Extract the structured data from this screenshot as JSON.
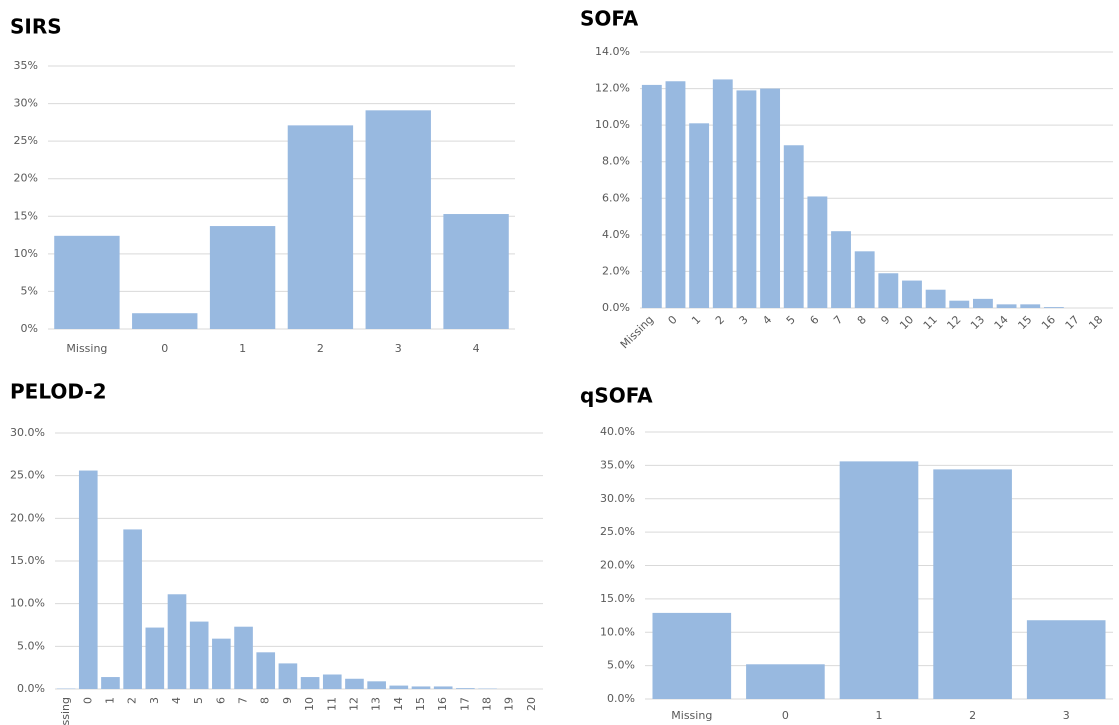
{
  "chart_data": [
    {
      "type": "bar",
      "title": "SIRS",
      "color": "#98b9e0",
      "grid": true,
      "categories": [
        "Missing",
        "0",
        "1",
        "2",
        "3",
        "4"
      ],
      "values": [
        12.4,
        2.1,
        13.7,
        27.1,
        29.1,
        15.3
      ],
      "ylim": [
        0,
        35
      ],
      "yticks": [
        {
          "value": 0,
          "label": "0%"
        },
        {
          "value": 5,
          "label": "5%"
        },
        {
          "value": 10,
          "label": "10%"
        },
        {
          "value": 15,
          "label": "15%"
        },
        {
          "value": 20,
          "label": "20%"
        },
        {
          "value": 25,
          "label": "25%"
        },
        {
          "value": 30,
          "label": "30%"
        },
        {
          "value": 35,
          "label": "35%"
        }
      ]
    },
    {
      "type": "bar",
      "title": "SOFA",
      "color": "#98b9e0",
      "grid": true,
      "categories": [
        "Missing",
        "0",
        "1",
        "2",
        "3",
        "4",
        "5",
        "6",
        "7",
        "8",
        "9",
        "10",
        "11",
        "12",
        "13",
        "14",
        "15",
        "16",
        "17",
        "18"
      ],
      "values": [
        12.2,
        12.4,
        10.1,
        12.5,
        11.9,
        12.0,
        8.9,
        6.1,
        4.2,
        3.1,
        1.9,
        1.5,
        1.0,
        0.4,
        0.5,
        0.2,
        0.2,
        0.05,
        0,
        0
      ],
      "ylim": [
        0,
        14
      ],
      "yticks": [
        {
          "value": 0,
          "label": "0.0%"
        },
        {
          "value": 2,
          "label": "2.0%"
        },
        {
          "value": 4,
          "label": "4.0%"
        },
        {
          "value": 6,
          "label": "6.0%"
        },
        {
          "value": 8,
          "label": "8.0%"
        },
        {
          "value": 10,
          "label": "10.0%"
        },
        {
          "value": 12,
          "label": "12.0%"
        },
        {
          "value": 14,
          "label": "14.0%"
        }
      ]
    },
    {
      "type": "bar",
      "title": "PELOD-2",
      "color": "#98b9e0",
      "grid": true,
      "categories": [
        "Missing",
        "0",
        "1",
        "2",
        "3",
        "4",
        "5",
        "6",
        "7",
        "8",
        "9",
        "10",
        "11",
        "12",
        "13",
        "14",
        "15",
        "16",
        "17",
        "18",
        "19",
        "20"
      ],
      "values": [
        0.05,
        25.6,
        1.4,
        18.7,
        7.2,
        11.1,
        7.9,
        5.9,
        7.3,
        4.3,
        3.0,
        1.4,
        1.7,
        1.2,
        0.9,
        0.4,
        0.3,
        0.3,
        0.1,
        0.05,
        0,
        0
      ],
      "ylim": [
        0,
        30
      ],
      "yticks": [
        {
          "value": 0,
          "label": "0.0%"
        },
        {
          "value": 5,
          "label": "5.0%"
        },
        {
          "value": 10,
          "label": "10.0%"
        },
        {
          "value": 15,
          "label": "15.0%"
        },
        {
          "value": 20,
          "label": "20.0%"
        },
        {
          "value": 25,
          "label": "25.0%"
        },
        {
          "value": 30,
          "label": "30.0%"
        }
      ]
    },
    {
      "type": "bar",
      "title": "qSOFA",
      "color": "#98b9e0",
      "grid": true,
      "categories": [
        "Missing",
        "0",
        "1",
        "2",
        "3"
      ],
      "values": [
        12.9,
        5.2,
        35.6,
        34.4,
        11.8
      ],
      "ylim": [
        0,
        40
      ],
      "yticks": [
        {
          "value": 0,
          "label": "0.0%"
        },
        {
          "value": 5,
          "label": "5.0%"
        },
        {
          "value": 10,
          "label": "10.0%"
        },
        {
          "value": 15,
          "label": "15.0%"
        },
        {
          "value": 20,
          "label": "20.0%"
        },
        {
          "value": 25,
          "label": "25.0%"
        },
        {
          "value": 30,
          "label": "30.0%"
        },
        {
          "value": 35,
          "label": "35.0%"
        },
        {
          "value": 40,
          "label": "40.0%"
        }
      ]
    }
  ]
}
